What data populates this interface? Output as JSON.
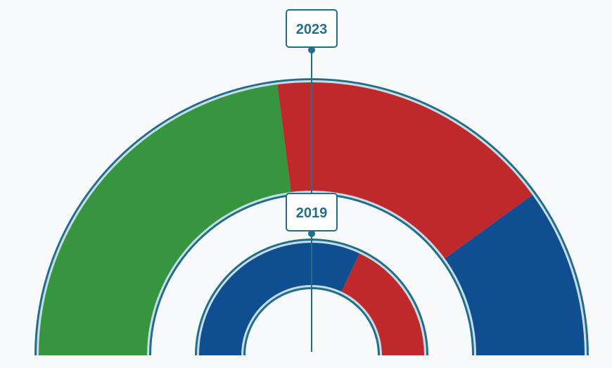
{
  "colors": {
    "background": "#f8f9fb",
    "outline": "#1f6f8b",
    "inner_edge": "#c8dce6",
    "label_text": "#1f6f8b",
    "label_bg": "#ffffff"
  },
  "chart_data": [
    {
      "type": "pie",
      "variant": "semicircle-donut",
      "label": "2023",
      "slices": [
        {
          "value": 0.46,
          "color": "#36963f"
        },
        {
          "value": 0.34,
          "color": "#c0292b"
        },
        {
          "value": 0.2,
          "color": "#0f4f91"
        }
      ]
    },
    {
      "type": "pie",
      "variant": "semicircle-donut",
      "label": "2019",
      "slices": [
        {
          "value": 0.64,
          "color": "#0f4f91"
        },
        {
          "value": 0.36,
          "color": "#c0292b"
        }
      ]
    }
  ]
}
